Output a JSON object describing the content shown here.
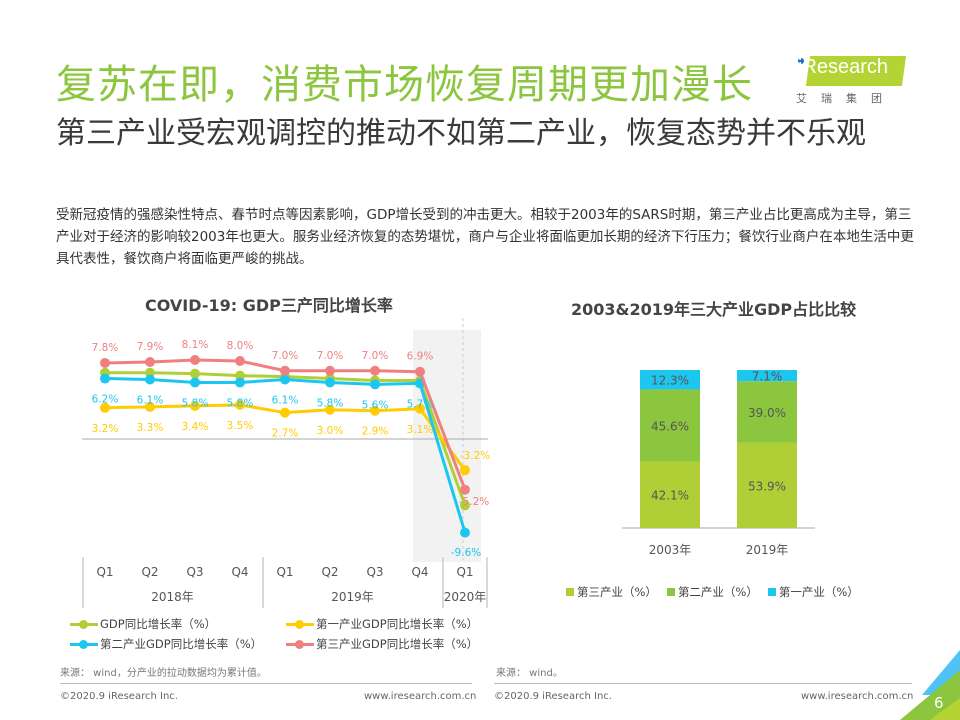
{
  "header": {
    "title": "复苏在即，消费市场恢复周期更加漫长",
    "subtitle": "第三产业受宏观调控的推动不如第二产业，恢复态势并不乐观",
    "logo_text": "iResearch",
    "logo_sub": "艾瑞集团"
  },
  "body_text": "受新冠疫情的强感染性特点、春节时点等因素影响，GDP增长受到的冲击更大。相较于2003年的SARS时期，第三产业占比更高成为主导，第三产业对于经济的影响较2003年也更大。服务业经济恢复的态势堪忧，商户与企业将面临更加长期的经济下行压力；餐饮行业商户在本地生活中更具代表性，餐饮商户将面临更严峻的挑战。",
  "chart_data": [
    {
      "type": "line",
      "title": "COVID-19: GDP三产同比增长率",
      "categories": [
        "Q1",
        "Q2",
        "Q3",
        "Q4",
        "Q1",
        "Q2",
        "Q3",
        "Q4",
        "Q1"
      ],
      "groups": [
        {
          "label": "2018年",
          "span": 4
        },
        {
          "label": "2019年",
          "span": 4
        },
        {
          "label": "2020年",
          "span": 1
        }
      ],
      "series": [
        {
          "name": "GDP同比增长率（%）",
          "color": "#b0cf36",
          "values": [
            6.8,
            6.8,
            6.7,
            6.5,
            6.4,
            6.2,
            6.0,
            6.0,
            -6.8
          ],
          "labels": false
        },
        {
          "name": "第一产业GDP同比增长率（%）",
          "color": "#ffcc00",
          "values": [
            3.2,
            3.3,
            3.4,
            3.5,
            2.7,
            3.0,
            2.9,
            3.1,
            -3.2
          ],
          "labels": true
        },
        {
          "name": "第二产业GDP同比增长率（%）",
          "color": "#1cc6ef",
          "values": [
            6.2,
            6.1,
            5.8,
            5.8,
            6.1,
            5.8,
            5.6,
            5.7,
            -9.6
          ],
          "labels": true
        },
        {
          "name": "第三产业GDP同比增长率（%）",
          "color": "#f08080",
          "values": [
            7.8,
            7.9,
            8.1,
            8.0,
            7.0,
            7.0,
            7.0,
            6.9,
            -5.2
          ],
          "labels": true
        }
      ],
      "value_labels": {
        "第一产业": [
          "3.2%",
          "3.3%",
          "3.4%",
          "3.5%",
          "2.7%",
          "3.0%",
          "2.9%",
          "3.1%",
          "-3.2%"
        ],
        "第二产业": [
          "6.2%",
          "6.1%",
          "5.8%",
          "5.8%",
          "6.1%",
          "5.8%",
          "5.6%",
          "5.7%",
          "-9.6%"
        ],
        "第三产业": [
          "7.8%",
          "7.9%",
          "8.1%",
          "8.0%",
          "7.0%",
          "7.0%",
          "7.0%",
          "6.9%",
          "-5.2%"
        ]
      },
      "highlight": "2019 Q4 – 2020 Q1",
      "source": "来源： wind，分产业的拉动数据均为累计值。"
    },
    {
      "type": "bar",
      "stacked": true,
      "title": "2003&2019年三大产业GDP占比比较",
      "categories": [
        "2003年",
        "2019年"
      ],
      "series": [
        {
          "name": "第三产业（%）",
          "color": "#b0cf36",
          "values": [
            42.1,
            53.9
          ],
          "labels": [
            "42.1%",
            "53.9%"
          ]
        },
        {
          "name": "第二产业（%）",
          "color": "#8cc63f",
          "values": [
            45.6,
            39.0
          ],
          "labels": [
            "45.6%",
            "39.0%"
          ]
        },
        {
          "name": "第一产业（%）",
          "color": "#1cc6ef",
          "values": [
            12.3,
            7.1
          ],
          "labels": [
            "12.3%",
            "7.1%"
          ]
        }
      ],
      "ylim": [
        0,
        100
      ],
      "source": "来源： wind。"
    }
  ],
  "footer": {
    "copyright": "©2020.9 iResearch Inc.",
    "url": "www.iresearch.com.cn",
    "page": "6"
  }
}
